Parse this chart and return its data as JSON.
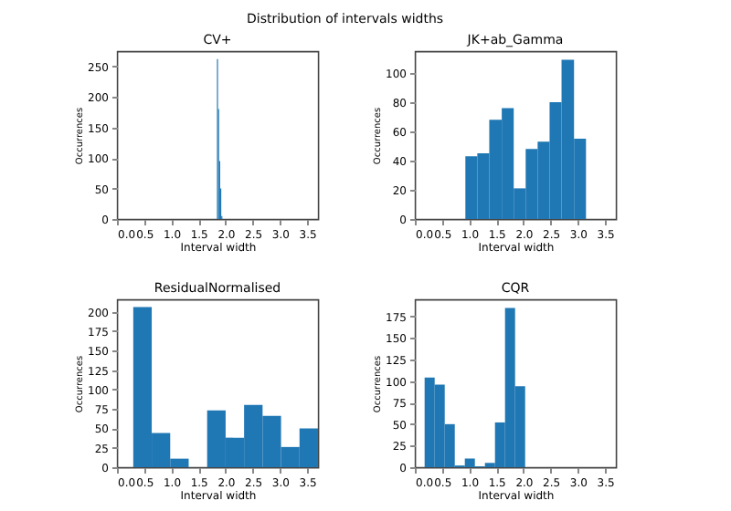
{
  "chart_data": [
    {
      "type": "histogram",
      "title": "CV+",
      "xlabel": "Interval width",
      "ylabel": "Occurrences",
      "annotations": [
        "Distribution of intervals widths"
      ],
      "color": "#1f77b4",
      "bins": [
        1.84,
        1.86,
        1.88,
        1.9,
        1.92,
        1.94
      ],
      "values": [
        262,
        180,
        95,
        50,
        5
      ],
      "xlim": [
        0,
        3.7
      ],
      "xticks": [
        {
          "value": 0,
          "label": "0.0"
        },
        0.5,
        {
          "value": 1,
          "label": "1.0"
        },
        1.5,
        {
          "value": 2,
          "label": "2.0"
        },
        2.5,
        {
          "value": 3,
          "label": "3.0"
        },
        3.5
      ],
      "ylim": [
        0,
        275
      ],
      "yticks": [
        0,
        50,
        100,
        150,
        200,
        250
      ],
      "grid": false
    },
    {
      "type": "histogram",
      "title": "JK+ab_Gamma",
      "xlabel": "Interval width",
      "ylabel": "Occurrences",
      "color": "#1f77b4",
      "bins": [
        0.93,
        1.15,
        1.37,
        1.6,
        1.82,
        2.04,
        2.26,
        2.48,
        2.7,
        2.93,
        3.15
      ],
      "values": [
        43,
        45,
        68,
        76,
        21,
        48,
        53,
        80,
        109,
        55
      ],
      "xlim": [
        0,
        3.7
      ],
      "xticks": [
        {
          "value": 0,
          "label": "0.0"
        },
        0.5,
        {
          "value": 1,
          "label": "1.0"
        },
        1.5,
        {
          "value": 2,
          "label": "2.0"
        },
        2.5,
        {
          "value": 3,
          "label": "3.0"
        },
        3.5
      ],
      "ylim": [
        0,
        115
      ],
      "yticks": [
        0,
        20,
        40,
        60,
        80,
        100
      ],
      "grid": false
    },
    {
      "type": "histogram",
      "title": "ResidualNormalised",
      "xlabel": "Interval width",
      "ylabel": "Occurrences",
      "color": "#1f77b4",
      "bins": [
        0.3,
        0.64,
        0.98,
        1.32,
        1.66,
        2.0,
        2.34,
        2.68,
        3.02,
        3.36,
        3.7
      ],
      "values": [
        206,
        44,
        11,
        0,
        73,
        38,
        80,
        66,
        26,
        50
      ],
      "xlim": [
        0,
        3.7
      ],
      "xticks": [
        {
          "value": 0,
          "label": "0.0"
        },
        0.5,
        {
          "value": 1,
          "label": "1.0"
        },
        1.5,
        {
          "value": 2,
          "label": "2.0"
        },
        2.5,
        {
          "value": 3,
          "label": "3.0"
        },
        3.5
      ],
      "ylim": [
        0,
        216
      ],
      "yticks": [
        0,
        25,
        50,
        75,
        100,
        125,
        150,
        175,
        200
      ],
      "grid": false
    },
    {
      "type": "histogram",
      "title": "CQR",
      "xlabel": "Interval width",
      "ylabel": "Occurrences",
      "color": "#1f77b4",
      "bins": [
        0.18,
        0.365,
        0.55,
        0.735,
        0.92,
        1.105,
        1.29,
        1.475,
        1.66,
        1.845,
        2.03
      ],
      "values": [
        104,
        96,
        50,
        2,
        10,
        1,
        5,
        52,
        185,
        94
      ],
      "xlim": [
        0,
        3.7
      ],
      "xticks": [
        {
          "value": 0,
          "label": "0.0"
        },
        0.5,
        {
          "value": 1,
          "label": "1.0"
        },
        1.5,
        {
          "value": 2,
          "label": "2.0"
        },
        2.5,
        {
          "value": 3,
          "label": "3.0"
        },
        3.5
      ],
      "ylim": [
        0,
        195
      ],
      "yticks": [
        0,
        25,
        50,
        75,
        100,
        125,
        150,
        175
      ],
      "grid": false
    }
  ]
}
